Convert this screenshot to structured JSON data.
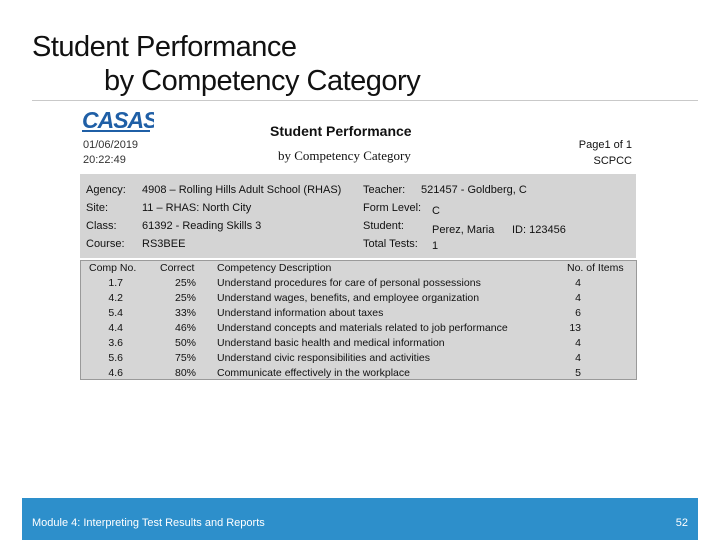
{
  "slide": {
    "title_line1": "Student Performance",
    "title_line2": "by Competency Category"
  },
  "report": {
    "logo_text": "CASAS",
    "title": "Student Performance",
    "subtitle": "by Competency Category",
    "date": "01/06/2019",
    "time": "20:22:49",
    "page": "Page1 of 1",
    "code": "SCPCC",
    "agency_label": "Agency:",
    "agency_value": "4908 – Rolling Hills Adult School (RHAS)",
    "site_label": "Site:",
    "site_value": "11 – RHAS: North City",
    "class_label": "Class:",
    "class_value": "61392 - Reading Skills 3",
    "course_label": "Course:",
    "course_value": "RS3BEE",
    "teacher_label": "Teacher:",
    "teacher_value": "521457 - Goldberg, C",
    "form_level_label": "Form Level:",
    "form_level_value": "C",
    "student_label": "Student:",
    "student_value": "Perez, Maria",
    "student_id": "ID: 123456",
    "total_tests_label": "Total Tests:",
    "total_tests_value": "1"
  },
  "table": {
    "headers": [
      "Comp No.",
      "Correct",
      "Competency Description",
      "No. of Items"
    ],
    "rows": [
      {
        "comp": "1.7",
        "correct": "25%",
        "desc": "Understand procedures for care of personal possessions",
        "items": "4"
      },
      {
        "comp": "4.2",
        "correct": "25%",
        "desc": "Understand wages, benefits, and employee organization",
        "items": "4"
      },
      {
        "comp": "5.4",
        "correct": "33%",
        "desc": "Understand information about taxes",
        "items": "6"
      },
      {
        "comp": "4.4",
        "correct": "46%",
        "desc": "Understand concepts and materials related to job performance",
        "items": "13"
      },
      {
        "comp": "3.6",
        "correct": "50%",
        "desc": "Understand basic health and medical information",
        "items": "4"
      },
      {
        "comp": "5.6",
        "correct": "75%",
        "desc": "Understand civic responsibilities and activities",
        "items": "4"
      },
      {
        "comp": "4.6",
        "correct": "80%",
        "desc": "Communicate effectively in the workplace",
        "items": "5"
      }
    ]
  },
  "footer": {
    "text": "Module 4: Interpreting Test Results and Reports",
    "page_number": "52"
  },
  "colors": {
    "footer_bg": "#2d8fcb",
    "logo_blue": "#1f5fa6",
    "panel_gray": "#d4d4d4"
  }
}
